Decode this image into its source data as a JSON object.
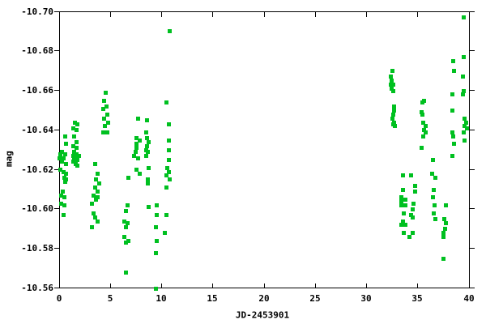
{
  "chart_data": {
    "type": "scatter",
    "title": "",
    "xlabel": "JD-2453901",
    "ylabel": "mag",
    "xlim": [
      0,
      40
    ],
    "ylim": [
      -10.7,
      -10.56
    ],
    "y_axis_inverted": true,
    "grid": false,
    "legend": "none",
    "marker": "filled-square",
    "marker_color": "#00c020",
    "background_color": "#ffffff",
    "axis_color": "#000000",
    "text_color": "#000000",
    "x_ticks": [
      0,
      5,
      10,
      15,
      20,
      25,
      30,
      35,
      40
    ],
    "x_tick_labels": [
      "0",
      "5",
      "10",
      "15",
      "20",
      "25",
      "30",
      "35",
      "40"
    ],
    "y_ticks": [
      -10.7,
      -10.68,
      -10.66,
      -10.64,
      -10.62,
      -10.6,
      -10.58,
      -10.56
    ],
    "y_tick_labels": [
      "-10.70",
      "-10.68",
      "-10.66",
      "-10.64",
      "-10.62",
      "-10.60",
      "-10.58",
      "-10.56"
    ],
    "series": [
      {
        "name": "mag",
        "points": [
          [
            0.53,
            -10.637
          ],
          [
            0.66,
            -10.633
          ],
          [
            0.26,
            -10.629
          ],
          [
            0.53,
            -10.628
          ],
          [
            0.08,
            -10.628
          ],
          [
            0.0,
            -10.626
          ],
          [
            0.4,
            -10.626
          ],
          [
            0.26,
            -10.624
          ],
          [
            0.66,
            -10.623
          ],
          [
            0.08,
            -10.62
          ],
          [
            0.4,
            -10.619
          ],
          [
            0.6,
            -10.618
          ],
          [
            0.45,
            -10.616
          ],
          [
            0.66,
            -10.615
          ],
          [
            0.53,
            -10.614
          ],
          [
            0.34,
            -10.609
          ],
          [
            0.15,
            -10.607
          ],
          [
            0.45,
            -10.606
          ],
          [
            0.15,
            -10.603
          ],
          [
            0.45,
            -10.602
          ],
          [
            0.4,
            -10.597
          ],
          [
            1.5,
            -10.644
          ],
          [
            1.74,
            -10.643
          ],
          [
            1.34,
            -10.641
          ],
          [
            1.66,
            -10.64
          ],
          [
            1.45,
            -10.637
          ],
          [
            1.66,
            -10.634
          ],
          [
            1.32,
            -10.632
          ],
          [
            1.66,
            -10.631
          ],
          [
            1.45,
            -10.629
          ],
          [
            1.66,
            -10.628
          ],
          [
            1.32,
            -10.627
          ],
          [
            1.58,
            -10.627
          ],
          [
            1.9,
            -10.627
          ],
          [
            1.45,
            -10.626
          ],
          [
            1.72,
            -10.625
          ],
          [
            1.32,
            -10.624
          ],
          [
            1.58,
            -10.623
          ],
          [
            1.72,
            -10.622
          ],
          [
            3.48,
            -10.623
          ],
          [
            3.72,
            -10.618
          ],
          [
            3.56,
            -10.615
          ],
          [
            3.87,
            -10.613
          ],
          [
            3.48,
            -10.611
          ],
          [
            3.72,
            -10.609
          ],
          [
            3.32,
            -10.607
          ],
          [
            3.72,
            -10.606
          ],
          [
            3.56,
            -10.605
          ],
          [
            3.16,
            -10.603
          ],
          [
            3.32,
            -10.598
          ],
          [
            3.48,
            -10.596
          ],
          [
            3.72,
            -10.594
          ],
          [
            3.16,
            -10.591
          ],
          [
            4.51,
            -10.659
          ],
          [
            4.35,
            -10.655
          ],
          [
            4.58,
            -10.652
          ],
          [
            4.27,
            -10.651
          ],
          [
            4.66,
            -10.648
          ],
          [
            4.35,
            -10.646
          ],
          [
            4.74,
            -10.644
          ],
          [
            4.43,
            -10.642
          ],
          [
            4.66,
            -10.639
          ],
          [
            4.27,
            -10.639
          ],
          [
            6.72,
            -10.616
          ],
          [
            6.64,
            -10.602
          ],
          [
            6.48,
            -10.599
          ],
          [
            6.32,
            -10.594
          ],
          [
            6.64,
            -10.593
          ],
          [
            6.48,
            -10.591
          ],
          [
            6.32,
            -10.586
          ],
          [
            6.72,
            -10.584
          ],
          [
            6.48,
            -10.583
          ],
          [
            6.48,
            -10.568
          ],
          [
            7.67,
            -10.646
          ],
          [
            8.54,
            -10.645
          ],
          [
            8.46,
            -10.639
          ],
          [
            7.51,
            -10.636
          ],
          [
            8.54,
            -10.636
          ],
          [
            7.83,
            -10.635
          ],
          [
            8.7,
            -10.634
          ],
          [
            7.51,
            -10.633
          ],
          [
            8.54,
            -10.632
          ],
          [
            7.51,
            -10.631
          ],
          [
            8.46,
            -10.63
          ],
          [
            7.43,
            -10.629
          ],
          [
            8.62,
            -10.629
          ],
          [
            7.27,
            -10.627
          ],
          [
            8.46,
            -10.627
          ],
          [
            7.67,
            -10.626
          ],
          [
            8.7,
            -10.621
          ],
          [
            7.51,
            -10.62
          ],
          [
            7.83,
            -10.618
          ],
          [
            8.62,
            -10.615
          ],
          [
            8.62,
            -10.613
          ],
          [
            8.7,
            -10.601
          ],
          [
            9.49,
            -10.602
          ],
          [
            9.49,
            -10.597
          ],
          [
            9.41,
            -10.591
          ],
          [
            9.49,
            -10.584
          ],
          [
            9.41,
            -10.578
          ],
          [
            9.41,
            -10.56
          ],
          [
            10.75,
            -10.69
          ],
          [
            10.43,
            -10.654
          ],
          [
            10.67,
            -10.643
          ],
          [
            10.67,
            -10.635
          ],
          [
            10.67,
            -10.63
          ],
          [
            10.67,
            -10.625
          ],
          [
            10.51,
            -10.621
          ],
          [
            10.67,
            -10.619
          ],
          [
            10.43,
            -10.617
          ],
          [
            10.75,
            -10.615
          ],
          [
            10.43,
            -10.611
          ],
          [
            10.43,
            -10.597
          ],
          [
            10.28,
            -10.588
          ],
          [
            32.49,
            -10.67
          ],
          [
            32.33,
            -10.667
          ],
          [
            32.41,
            -10.665
          ],
          [
            32.33,
            -10.663
          ],
          [
            32.57,
            -10.663
          ],
          [
            32.41,
            -10.661
          ],
          [
            32.57,
            -10.66
          ],
          [
            32.65,
            -10.652
          ],
          [
            32.65,
            -10.65
          ],
          [
            32.57,
            -10.648
          ],
          [
            32.49,
            -10.646
          ],
          [
            32.65,
            -10.644
          ],
          [
            32.57,
            -10.643
          ],
          [
            32.73,
            -10.642
          ],
          [
            33.52,
            -10.617
          ],
          [
            34.31,
            -10.617
          ],
          [
            34.7,
            -10.612
          ],
          [
            33.52,
            -10.61
          ],
          [
            34.7,
            -10.609
          ],
          [
            33.36,
            -10.606
          ],
          [
            33.75,
            -10.605
          ],
          [
            33.36,
            -10.604
          ],
          [
            34.55,
            -10.603
          ],
          [
            33.75,
            -10.602
          ],
          [
            33.36,
            -10.602
          ],
          [
            34.47,
            -10.6
          ],
          [
            33.6,
            -10.598
          ],
          [
            34.31,
            -10.597
          ],
          [
            34.43,
            -10.596
          ],
          [
            33.52,
            -10.594
          ],
          [
            33.36,
            -10.592
          ],
          [
            33.75,
            -10.592
          ],
          [
            33.6,
            -10.588
          ],
          [
            34.47,
            -10.588
          ],
          [
            34.15,
            -10.586
          ],
          [
            35.57,
            -10.655
          ],
          [
            35.42,
            -10.654
          ],
          [
            35.34,
            -10.649
          ],
          [
            35.42,
            -10.648
          ],
          [
            35.5,
            -10.644
          ],
          [
            35.73,
            -10.642
          ],
          [
            35.57,
            -10.64
          ],
          [
            35.73,
            -10.639
          ],
          [
            35.5,
            -10.637
          ],
          [
            35.34,
            -10.631
          ],
          [
            36.44,
            -10.625
          ],
          [
            36.36,
            -10.618
          ],
          [
            36.68,
            -10.616
          ],
          [
            36.52,
            -10.61
          ],
          [
            36.44,
            -10.606
          ],
          [
            36.6,
            -10.602
          ],
          [
            36.52,
            -10.598
          ],
          [
            36.68,
            -10.595
          ],
          [
            37.71,
            -10.602
          ],
          [
            37.55,
            -10.595
          ],
          [
            37.71,
            -10.593
          ],
          [
            37.63,
            -10.59
          ],
          [
            37.47,
            -10.588
          ],
          [
            37.47,
            -10.586
          ],
          [
            37.47,
            -10.575
          ],
          [
            38.42,
            -10.675
          ],
          [
            38.5,
            -10.67
          ],
          [
            38.34,
            -10.658
          ],
          [
            38.34,
            -10.65
          ],
          [
            38.34,
            -10.639
          ],
          [
            38.42,
            -10.637
          ],
          [
            38.5,
            -10.633
          ],
          [
            38.34,
            -10.627
          ],
          [
            39.45,
            -10.697
          ],
          [
            39.45,
            -10.677
          ],
          [
            39.37,
            -10.667
          ],
          [
            39.45,
            -10.66
          ],
          [
            39.37,
            -10.658
          ],
          [
            39.53,
            -10.646
          ],
          [
            39.68,
            -10.644
          ],
          [
            39.53,
            -10.642
          ],
          [
            39.76,
            -10.641
          ],
          [
            39.45,
            -10.639
          ],
          [
            39.53,
            -10.635
          ]
        ]
      }
    ]
  }
}
